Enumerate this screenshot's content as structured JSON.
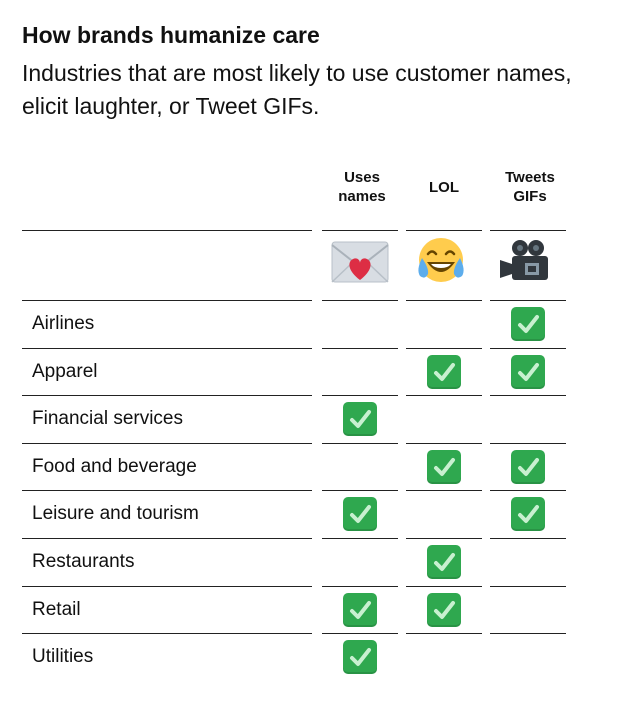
{
  "title": "How brands humanize care",
  "subtitle": "Industries that are most likely to use customer names, elicit laughter, or Tweet GIFs.",
  "columns": [
    {
      "label": "Uses names",
      "icon": "envelope-heart-icon"
    },
    {
      "label": "LOL",
      "icon": "tears-of-joy-icon"
    },
    {
      "label": "Tweets GIFs",
      "icon": "movie-camera-icon"
    }
  ],
  "rows": [
    {
      "label": "Airlines",
      "checks": [
        false,
        false,
        true
      ]
    },
    {
      "label": "Apparel",
      "checks": [
        false,
        true,
        true
      ]
    },
    {
      "label": "Financial services",
      "checks": [
        true,
        false,
        false
      ]
    },
    {
      "label": "Food and beverage",
      "checks": [
        false,
        true,
        true
      ]
    },
    {
      "label": "Leisure and tourism",
      "checks": [
        true,
        false,
        true
      ]
    },
    {
      "label": "Restaurants",
      "checks": [
        false,
        true,
        false
      ]
    },
    {
      "label": "Retail",
      "checks": [
        true,
        true,
        false
      ]
    },
    {
      "label": "Utilities",
      "checks": [
        true,
        false,
        false
      ]
    }
  ],
  "colors": {
    "check_green": "#2fa84f",
    "rule": "#222222",
    "text": "#111111"
  }
}
